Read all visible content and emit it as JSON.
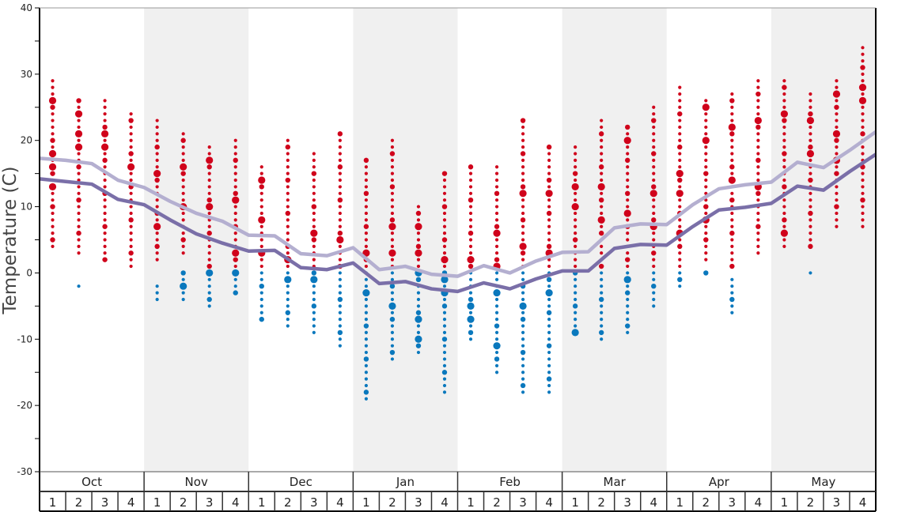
{
  "chart_data": {
    "type": "scatter",
    "ylabel": "Temperature (C)",
    "ylim": [
      -30,
      40
    ],
    "yticks": [
      -30,
      -20,
      -10,
      0,
      10,
      20,
      30,
      40
    ],
    "minor_tick_step": 5,
    "grid": false,
    "months": [
      "Oct",
      "Nov",
      "Dec",
      "Jan",
      "Feb",
      "Mar",
      "Apr",
      "May"
    ],
    "weeks": [
      "1",
      "2",
      "3",
      "4"
    ],
    "shaded_months": [
      "Nov",
      "Jan",
      "Mar",
      "May"
    ],
    "colors": {
      "warm_dots": "#d0021b",
      "cold_dots": "#0a78bd",
      "upper_line": "#b4afd0",
      "lower_line": "#7a6fa8",
      "shade": "#f0f0f0"
    },
    "upper_line": [
      17.3,
      17.0,
      16.5,
      14.0,
      12.9,
      10.8,
      9.0,
      7.8,
      5.7,
      5.6,
      2.9,
      2.6,
      3.8,
      0.5,
      1.0,
      -0.2,
      -0.5,
      1.1,
      0.0,
      1.8,
      3.1,
      3.2,
      6.8,
      7.4,
      7.3,
      10.3,
      12.7,
      13.3,
      13.7,
      16.7,
      15.9,
      18.5,
      21.3
    ],
    "lower_line": [
      14.2,
      13.8,
      13.4,
      11.1,
      10.3,
      8.0,
      5.9,
      4.5,
      3.3,
      3.4,
      0.8,
      0.5,
      1.5,
      -1.6,
      -1.3,
      -2.4,
      -2.8,
      -1.5,
      -2.4,
      -0.9,
      0.3,
      0.3,
      3.7,
      4.3,
      4.2,
      7.0,
      9.5,
      9.9,
      10.5,
      13.1,
      12.5,
      15.3,
      17.9
    ],
    "weekly_dots": [
      {
        "red": [
          4,
          29
        ],
        "blue": null,
        "large": [
          13,
          16,
          18,
          26
        ]
      },
      {
        "red": [
          3,
          26
        ],
        "blue": [
          -2,
          -2
        ],
        "large": [
          19,
          21,
          24
        ]
      },
      {
        "red": [
          2,
          26
        ],
        "blue": null,
        "large": [
          19,
          21
        ]
      },
      {
        "red": [
          1,
          24
        ],
        "blue": null,
        "large": [
          16
        ]
      },
      {
        "red": [
          2,
          23
        ],
        "blue": [
          -4,
          -2
        ],
        "large": [
          15,
          7
        ]
      },
      {
        "red": [
          3,
          21
        ],
        "blue": [
          -4,
          0
        ],
        "large": [
          16,
          10,
          -2
        ]
      },
      {
        "red": [
          1,
          19
        ],
        "blue": [
          -5,
          0
        ],
        "large": [
          17,
          10,
          0
        ]
      },
      {
        "red": [
          1,
          20
        ],
        "blue": [
          -3,
          0
        ],
        "large": [
          11,
          3,
          0
        ]
      },
      {
        "red": [
          1,
          16
        ],
        "blue": [
          -7,
          0
        ],
        "large": [
          14,
          8,
          3
        ]
      },
      {
        "red": [
          1,
          20
        ],
        "blue": [
          -8,
          0
        ],
        "large": [
          2,
          -1
        ]
      },
      {
        "red": [
          1,
          18
        ],
        "blue": [
          -9,
          0
        ],
        "large": [
          6,
          -1
        ]
      },
      {
        "red": [
          1,
          21
        ],
        "blue": [
          -11,
          0
        ],
        "large": [
          5
        ]
      },
      {
        "red": [
          1,
          17
        ],
        "blue": [
          -19,
          0
        ],
        "large": [
          3,
          -3
        ]
      },
      {
        "red": [
          1,
          20
        ],
        "blue": [
          -13,
          0
        ],
        "large": [
          7,
          3,
          -5
        ]
      },
      {
        "red": [
          1,
          10
        ],
        "blue": [
          -12,
          0
        ],
        "large": [
          7,
          3,
          0,
          -7,
          -10
        ]
      },
      {
        "red": [
          1,
          15
        ],
        "blue": [
          -18,
          0
        ],
        "large": [
          2,
          -1,
          -3
        ]
      },
      {
        "red": [
          1,
          16
        ],
        "blue": [
          -10,
          0
        ],
        "large": [
          2,
          -5,
          -7
        ]
      },
      {
        "red": [
          1,
          16
        ],
        "blue": [
          -15,
          0
        ],
        "large": [
          6,
          1,
          -3,
          -11
        ]
      },
      {
        "red": [
          1,
          23
        ],
        "blue": [
          -18,
          0
        ],
        "large": [
          12,
          4,
          -5
        ]
      },
      {
        "red": [
          1,
          19
        ],
        "blue": [
          -18,
          0
        ],
        "large": [
          12,
          3,
          -3
        ]
      },
      {
        "red": [
          1,
          19
        ],
        "blue": [
          -9,
          0
        ],
        "large": [
          10,
          13,
          -9
        ]
      },
      {
        "red": [
          1,
          23
        ],
        "blue": [
          -10,
          0
        ],
        "large": [
          13,
          8
        ]
      },
      {
        "red": [
          1,
          22
        ],
        "blue": [
          -9,
          0
        ],
        "large": [
          9,
          20,
          -1
        ]
      },
      {
        "red": [
          1,
          25
        ],
        "blue": [
          -5,
          0
        ],
        "large": [
          12,
          7
        ]
      },
      {
        "red": [
          1,
          28
        ],
        "blue": [
          -2,
          0
        ],
        "large": [
          15,
          12,
          6
        ]
      },
      {
        "red": [
          2,
          26
        ],
        "blue": [
          0,
          0
        ],
        "large": [
          25,
          20,
          8
        ]
      },
      {
        "red": [
          1,
          27
        ],
        "blue": [
          -6,
          -1
        ],
        "large": [
          22,
          14
        ]
      },
      {
        "red": [
          3,
          29
        ],
        "blue": null,
        "large": [
          23,
          13
        ]
      },
      {
        "red": [
          4,
          29
        ],
        "blue": null,
        "large": [
          24,
          6
        ]
      },
      {
        "red": [
          4,
          27
        ],
        "blue": [
          0,
          0
        ],
        "large": [
          23,
          18
        ]
      },
      {
        "red": [
          7,
          29
        ],
        "blue": null,
        "large": [
          27,
          21,
          17
        ]
      },
      {
        "red": [
          7,
          34
        ],
        "blue": null,
        "large": [
          28,
          26
        ]
      }
    ]
  }
}
